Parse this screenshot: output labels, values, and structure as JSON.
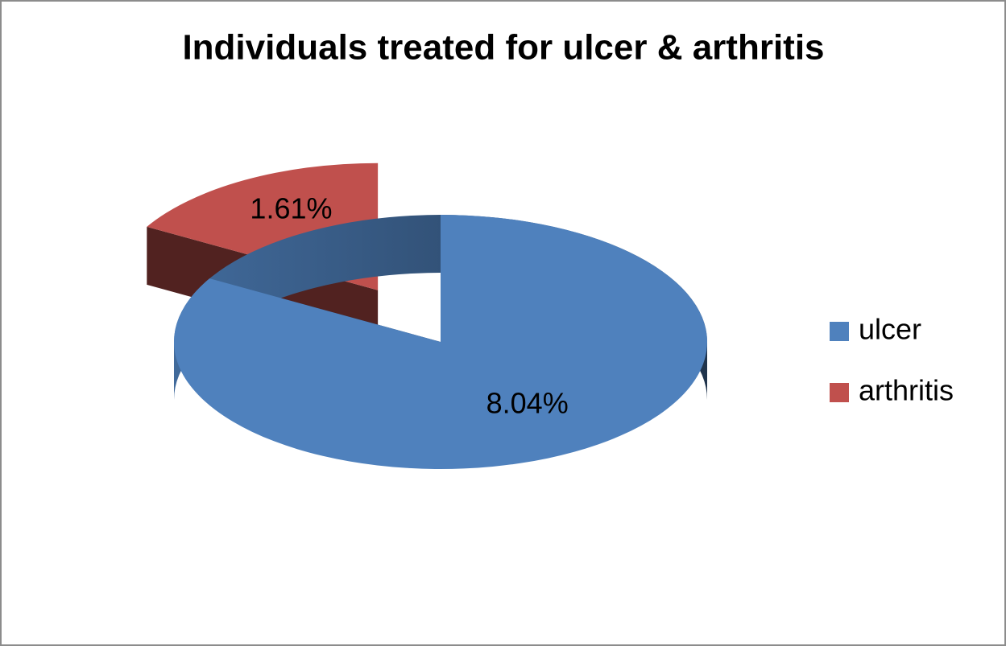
{
  "chart_data": {
    "type": "pie",
    "title": "Individuals treated for ulcer & arthritis",
    "categories": [
      "ulcer",
      "arthritis"
    ],
    "values": [
      8.04,
      1.61
    ],
    "value_labels": [
      "8.04%",
      "1.61%"
    ],
    "colors": [
      "#4f81bd",
      "#c0504d"
    ],
    "legend": "right"
  }
}
